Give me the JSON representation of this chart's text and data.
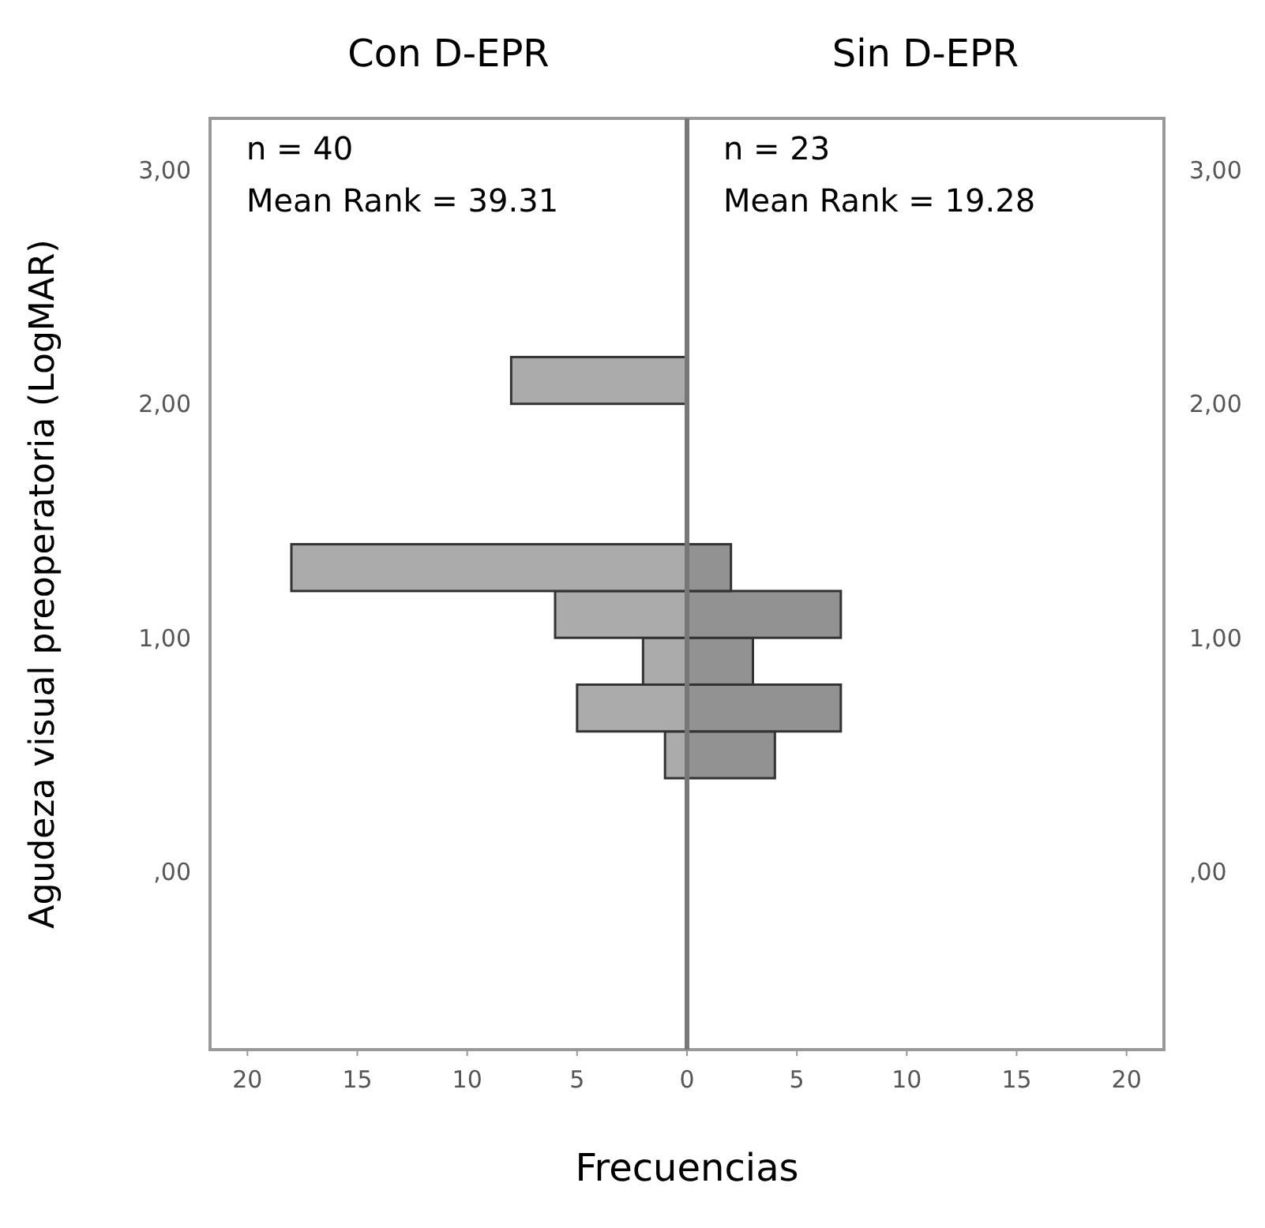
{
  "chart_data": [
    {
      "type": "histogram",
      "orientation": "horizontal",
      "title": "Con D-EPR",
      "ylabel": "Agudeza visual preoperatoria (LogMAR)",
      "xlabel": "Frecuencias",
      "annotations": [
        "n = 40",
        "Mean Rank = 39.31"
      ],
      "bins": [
        0.4,
        0.6,
        0.8,
        1.0,
        1.2,
        1.4,
        1.6,
        1.8,
        2.0,
        2.2
      ],
      "series": [
        {
          "color": "#a6a6a6",
          "values": [
            1,
            5,
            2,
            6,
            18,
            0,
            0,
            0,
            8
          ]
        }
      ],
      "xlim": [
        21.7,
        0
      ],
      "xticks": [
        20,
        15,
        10,
        5,
        0
      ],
      "ylim": [
        -0.76,
        3.22
      ],
      "yticks": [
        {
          "value": 0,
          "label": ",00"
        },
        {
          "value": 1,
          "label": "1,00"
        },
        {
          "value": 2,
          "label": "2,00"
        },
        {
          "value": 3,
          "label": "3,00"
        }
      ]
    },
    {
      "type": "histogram",
      "orientation": "horizontal",
      "title": "Sin D-EPR",
      "annotations": [
        "n = 23",
        "Mean Rank = 19.28"
      ],
      "bins": [
        0.4,
        0.6,
        0.8,
        1.0,
        1.2,
        1.4,
        1.6,
        1.8,
        2.0,
        2.2
      ],
      "series": [
        {
          "color": "#8c8c8c",
          "values": [
            4,
            7,
            3,
            7,
            2,
            0,
            0,
            0,
            0
          ]
        }
      ],
      "xlim": [
        0,
        21.7
      ],
      "xticks": [
        5,
        10,
        15,
        20
      ],
      "ylim": [
        -0.76,
        3.22
      ],
      "yticks": [
        {
          "value": 0,
          "label": ",00"
        },
        {
          "value": 1,
          "label": "1,00"
        },
        {
          "value": 2,
          "label": "2,00"
        },
        {
          "value": 3,
          "label": "3,00"
        }
      ]
    }
  ]
}
